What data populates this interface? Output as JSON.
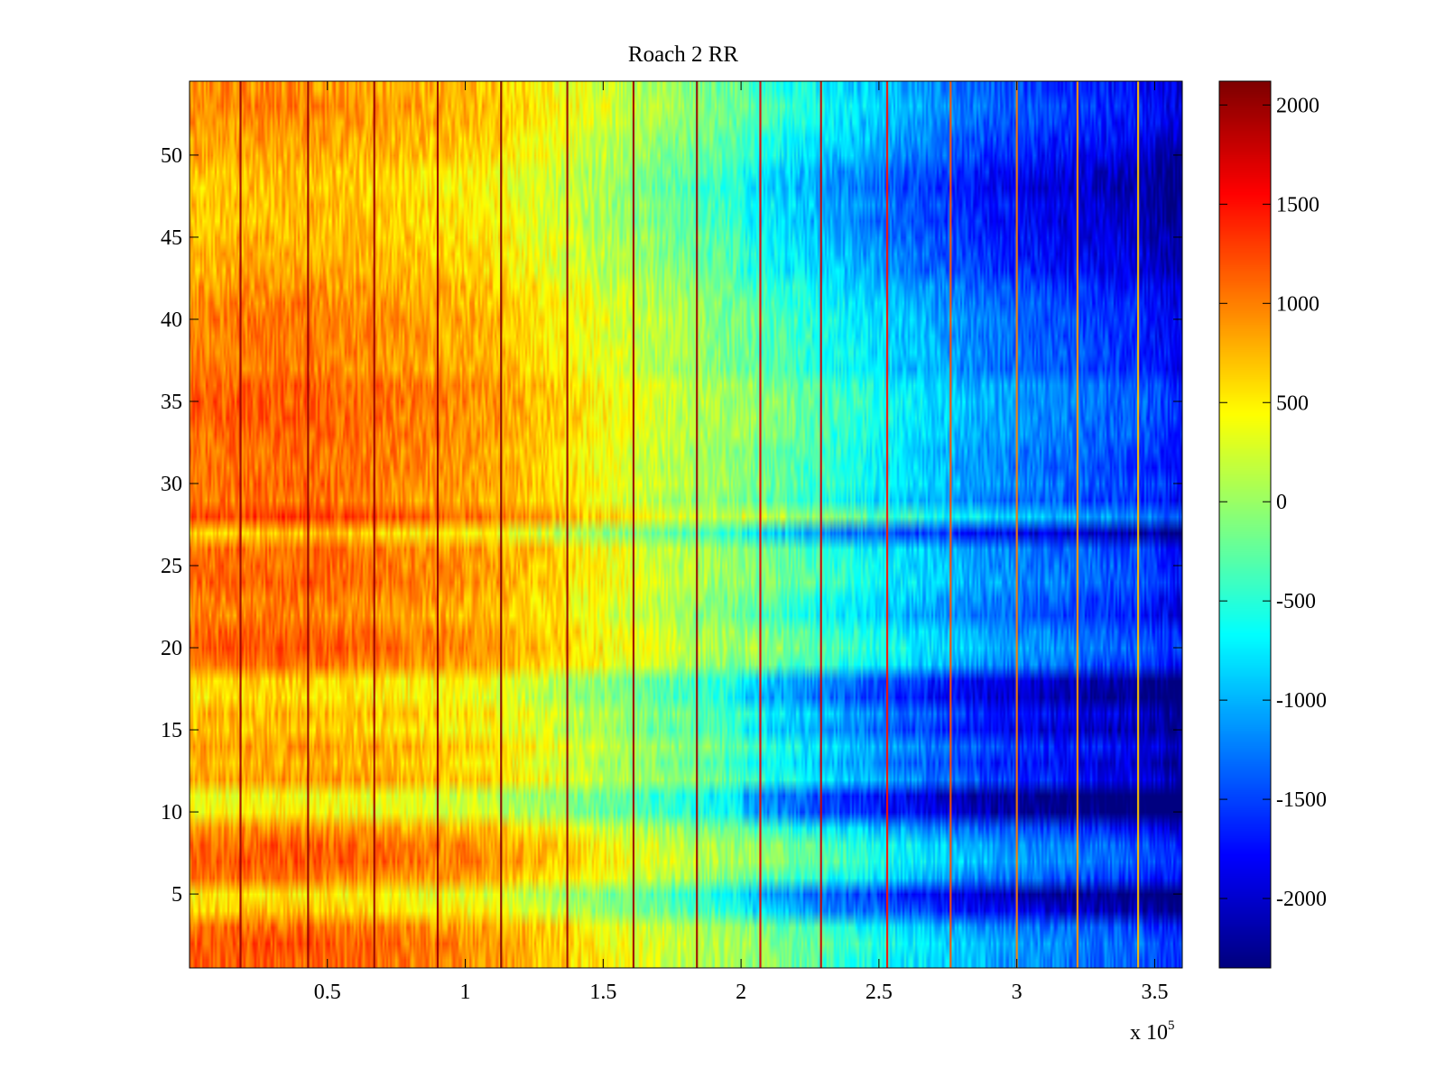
{
  "chart_data": {
    "type": "heatmap",
    "title": "Roach 2 RR",
    "xlabel": "",
    "ylabel": "",
    "x_range": [
      0,
      360000
    ],
    "y_range": [
      0.5,
      54.5
    ],
    "x_exponent_label": "x 10",
    "x_exponent_power": "5",
    "x_ticks": [
      {
        "value": 50000,
        "label": "0.5"
      },
      {
        "value": 100000,
        "label": "1"
      },
      {
        "value": 150000,
        "label": "1.5"
      },
      {
        "value": 200000,
        "label": "2"
      },
      {
        "value": 250000,
        "label": "2.5"
      },
      {
        "value": 300000,
        "label": "3"
      },
      {
        "value": 350000,
        "label": "3.5"
      }
    ],
    "y_ticks": [
      {
        "value": 5,
        "label": "5"
      },
      {
        "value": 10,
        "label": "10"
      },
      {
        "value": 15,
        "label": "15"
      },
      {
        "value": 20,
        "label": "20"
      },
      {
        "value": 25,
        "label": "25"
      },
      {
        "value": 30,
        "label": "30"
      },
      {
        "value": 35,
        "label": "35"
      },
      {
        "value": 40,
        "label": "40"
      },
      {
        "value": 45,
        "label": "45"
      },
      {
        "value": 50,
        "label": "50"
      }
    ],
    "colorbar": {
      "colormap": "jet",
      "range": [
        -2350,
        2120
      ],
      "ticks": [
        {
          "value": 2000,
          "label": "2000"
        },
        {
          "value": 1500,
          "label": "1500"
        },
        {
          "value": 1000,
          "label": "1000"
        },
        {
          "value": 500,
          "label": "500"
        },
        {
          "value": 0,
          "label": "0"
        },
        {
          "value": -500,
          "label": "-500"
        },
        {
          "value": -1000,
          "label": "-1000"
        },
        {
          "value": -1500,
          "label": "-1500"
        },
        {
          "value": -2000,
          "label": "-2000"
        }
      ]
    },
    "column_trend": [
      {
        "x": 0,
        "value": 1000
      },
      {
        "x": 40000,
        "value": 1050
      },
      {
        "x": 80000,
        "value": 900
      },
      {
        "x": 110000,
        "value": 780
      },
      {
        "x": 140000,
        "value": 450
      },
      {
        "x": 170000,
        "value": 150
      },
      {
        "x": 200000,
        "value": -150
      },
      {
        "x": 230000,
        "value": -550
      },
      {
        "x": 260000,
        "value": -900
      },
      {
        "x": 290000,
        "value": -1250
      },
      {
        "x": 320000,
        "value": -1450
      },
      {
        "x": 345000,
        "value": -1600
      },
      {
        "x": 360000,
        "value": -1850
      }
    ],
    "row_offsets": [
      {
        "row": 1,
        "offset": 120
      },
      {
        "row": 2,
        "offset": 150
      },
      {
        "row": 3,
        "offset": 60
      },
      {
        "row": 4,
        "offset": -350
      },
      {
        "row": 5,
        "offset": -500
      },
      {
        "row": 6,
        "offset": 0
      },
      {
        "row": 7,
        "offset": 150
      },
      {
        "row": 8,
        "offset": 120
      },
      {
        "row": 9,
        "offset": -100
      },
      {
        "row": 10,
        "offset": -550
      },
      {
        "row": 11,
        "offset": -600
      },
      {
        "row": 12,
        "offset": -150
      },
      {
        "row": 13,
        "offset": -250
      },
      {
        "row": 14,
        "offset": -150
      },
      {
        "row": 15,
        "offset": -350
      },
      {
        "row": 16,
        "offset": -250
      },
      {
        "row": 17,
        "offset": -450
      },
      {
        "row": 18,
        "offset": -400
      },
      {
        "row": 19,
        "offset": 50
      },
      {
        "row": 20,
        "offset": 150
      },
      {
        "row": 21,
        "offset": 100
      },
      {
        "row": 22,
        "offset": -50
      },
      {
        "row": 23,
        "offset": 0
      },
      {
        "row": 24,
        "offset": 100
      },
      {
        "row": 25,
        "offset": 80
      },
      {
        "row": 26,
        "offset": 60
      },
      {
        "row": 27,
        "offset": -350
      },
      {
        "row": 28,
        "offset": 280
      },
      {
        "row": 29,
        "offset": 0
      },
      {
        "row": 30,
        "offset": 80
      },
      {
        "row": 31,
        "offset": 50
      },
      {
        "row": 32,
        "offset": 60
      },
      {
        "row": 33,
        "offset": 100
      },
      {
        "row": 34,
        "offset": 120
      },
      {
        "row": 35,
        "offset": 140
      },
      {
        "row": 36,
        "offset": 120
      },
      {
        "row": 37,
        "offset": -20
      },
      {
        "row": 38,
        "offset": 0
      },
      {
        "row": 39,
        "offset": -20
      },
      {
        "row": 40,
        "offset": 0
      },
      {
        "row": 41,
        "offset": -50
      },
      {
        "row": 42,
        "offset": -100
      },
      {
        "row": 43,
        "offset": -200
      },
      {
        "row": 44,
        "offset": -220
      },
      {
        "row": 45,
        "offset": -250
      },
      {
        "row": 46,
        "offset": -300
      },
      {
        "row": 47,
        "offset": -280
      },
      {
        "row": 48,
        "offset": -350
      },
      {
        "row": 49,
        "offset": -300
      },
      {
        "row": 50,
        "offset": -200
      },
      {
        "row": 51,
        "offset": -150
      },
      {
        "row": 52,
        "offset": -100
      },
      {
        "row": 53,
        "offset": -50
      },
      {
        "row": 54,
        "offset": -100
      }
    ],
    "vertical_lines": [
      {
        "x": 18500,
        "value": 2000
      },
      {
        "x": 43000,
        "value": 2000
      },
      {
        "x": 67000,
        "value": 2000
      },
      {
        "x": 90000,
        "value": 2000
      },
      {
        "x": 113000,
        "value": 2100
      },
      {
        "x": 137000,
        "value": 2000
      },
      {
        "x": 161000,
        "value": 2000
      },
      {
        "x": 184000,
        "value": 2000
      },
      {
        "x": 207000,
        "value": 1700
      },
      {
        "x": 229000,
        "value": 1800
      },
      {
        "x": 253000,
        "value": 1500
      },
      {
        "x": 276000,
        "value": 1200
      },
      {
        "x": 300000,
        "value": 1000
      },
      {
        "x": 322000,
        "value": 900
      },
      {
        "x": 344000,
        "value": 700
      }
    ]
  }
}
